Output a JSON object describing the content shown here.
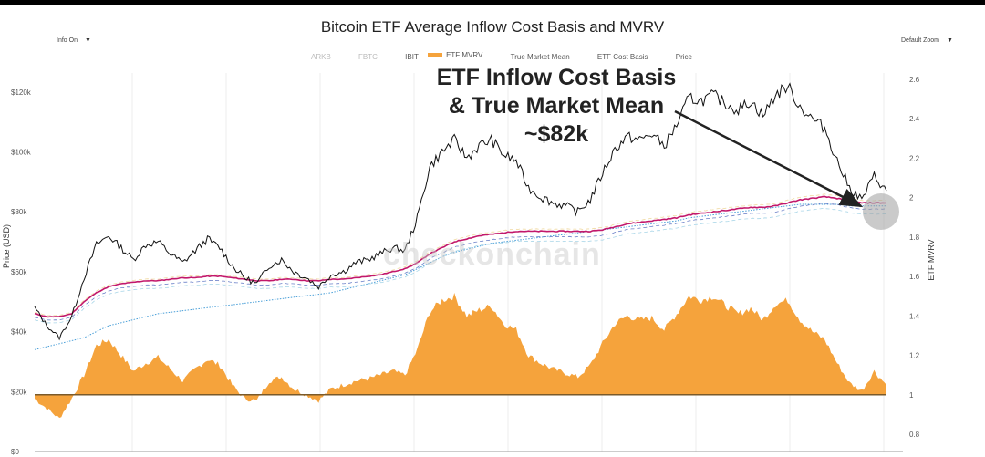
{
  "chart_data": {
    "type": "line",
    "title": "Bitcoin ETF Average Inflow Cost Basis and MVRV",
    "controls": {
      "left": "Info On",
      "right": "Default Zoom"
    },
    "ylabel_left": "Price (USD)",
    "ylabel_right": "ETF MVRV",
    "ylim_left": [
      0,
      130000
    ],
    "ylim_right": [
      0.8,
      2.6
    ],
    "left_ticks": [
      "$0",
      "$20k",
      "$40k",
      "$60k",
      "$80k",
      "$100k",
      "$120k"
    ],
    "left_tick_values": [
      0,
      20000,
      40000,
      60000,
      80000,
      100000,
      120000
    ],
    "right_ticks": [
      "0.8",
      "1",
      "1.2",
      "1.4",
      "1.6",
      "1.8",
      "2",
      "2.2",
      "2.4",
      "2.6"
    ],
    "right_tick_values": [
      0.8,
      1.0,
      1.2,
      1.4,
      1.6,
      1.8,
      2.0,
      2.2,
      2.4,
      2.6
    ],
    "legend": [
      "ARKB",
      "FBTC",
      "IBIT",
      "ETF MVRV",
      "True Market Mean",
      "ETF Cost Basis",
      "Price"
    ],
    "annotation": [
      "ETF Inflow Cost Basis",
      "& True Market Mean",
      "~$82k"
    ],
    "watermark": "checkonchain",
    "colors": {
      "price": "#111111",
      "cost_basis": "#c2186b",
      "true_market_mean": "#4a9fd8",
      "mvrv_area": "#f5a33c",
      "ibit": "#6a7fc8",
      "fbtc": "#f0d9a0",
      "arkb": "#a9d6e8",
      "baseline": "#7a5a2a"
    },
    "series": [
      {
        "name": "Price",
        "values": [
          48000,
          42000,
          38000,
          45000,
          58000,
          69000,
          72000,
          68000,
          64000,
          69000,
          70000,
          66000,
          63000,
          67000,
          71000,
          68000,
          62000,
          58000,
          56000,
          62000,
          64000,
          60000,
          58000,
          55000,
          59000,
          60000,
          63000,
          64000,
          66000,
          68000,
          67000,
          78000,
          95000,
          100000,
          104000,
          98000,
          102000,
          104000,
          99000,
          97000,
          88000,
          85000,
          83000,
          82000,
          80000,
          84000,
          93000,
          101000,
          105000,
          104000,
          106000,
          102000,
          109000,
          118000,
          117000,
          119000,
          116000,
          114000,
          117000,
          112000,
          119000,
          122000,
          115000,
          111000,
          108000,
          97000,
          88000,
          84000,
          92000,
          87000
        ]
      },
      {
        "name": "ETF Cost Basis",
        "values": [
          46000,
          45000,
          45000,
          46000,
          50000,
          53000,
          55000,
          56000,
          56500,
          57000,
          57000,
          57500,
          58000,
          58000,
          58500,
          58500,
          58000,
          57500,
          57000,
          57000,
          57500,
          57500,
          57000,
          57000,
          57500,
          57500,
          58000,
          58500,
          59000,
          60000,
          61000,
          63000,
          66000,
          68000,
          70000,
          71000,
          72000,
          72500,
          73000,
          73500,
          73500,
          73500,
          73500,
          73500,
          73500,
          73500,
          74000,
          75000,
          76000,
          76500,
          77000,
          77500,
          78000,
          79000,
          79500,
          80000,
          80500,
          81000,
          81500,
          81500,
          82000,
          83000,
          84000,
          84500,
          85000,
          84500,
          83500,
          83000,
          83000,
          83000
        ]
      },
      {
        "name": "True Market Mean",
        "values": [
          34000,
          35000,
          36000,
          37000,
          38000,
          40000,
          42000,
          43000,
          44000,
          45000,
          46000,
          46500,
          47000,
          47500,
          48000,
          48500,
          49000,
          49500,
          50000,
          50500,
          51000,
          51500,
          52000,
          52500,
          53000,
          54000,
          55000,
          56000,
          57000,
          58000,
          59000,
          61000,
          63000,
          65000,
          66500,
          67500,
          68500,
          69500,
          70000,
          70500,
          71000,
          71500,
          72000,
          72500,
          73000,
          73500,
          74000,
          74500,
          75000,
          75500,
          76000,
          76500,
          77000,
          78000,
          78500,
          79000,
          79500,
          80000,
          80500,
          81000,
          81500,
          82000,
          82500,
          82500,
          82500,
          82500,
          82000,
          82000,
          82000,
          82000
        ]
      },
      {
        "name": "ETF MVRV",
        "values": [
          0.98,
          0.93,
          0.88,
          0.98,
          1.1,
          1.25,
          1.28,
          1.2,
          1.12,
          1.16,
          1.19,
          1.13,
          1.07,
          1.13,
          1.18,
          1.15,
          1.05,
          0.98,
          0.97,
          1.07,
          1.09,
          1.03,
          1.0,
          0.97,
          1.03,
          1.05,
          1.07,
          1.08,
          1.1,
          1.12,
          1.1,
          1.23,
          1.42,
          1.48,
          1.5,
          1.4,
          1.43,
          1.45,
          1.36,
          1.33,
          1.2,
          1.16,
          1.13,
          1.11,
          1.09,
          1.15,
          1.26,
          1.36,
          1.4,
          1.38,
          1.39,
          1.33,
          1.41,
          1.5,
          1.48,
          1.5,
          1.45,
          1.41,
          1.44,
          1.38,
          1.46,
          1.48,
          1.38,
          1.32,
          1.28,
          1.16,
          1.06,
          1.02,
          1.12,
          1.05
        ]
      }
    ]
  }
}
